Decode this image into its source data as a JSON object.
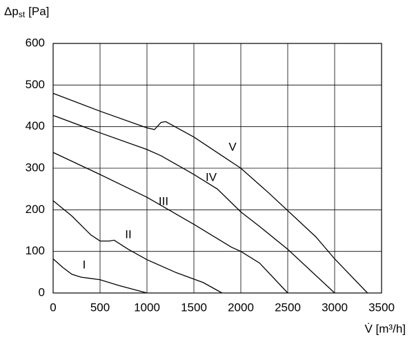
{
  "chart_data": {
    "type": "line",
    "y_label": {
      "main": "Δp",
      "sub": "st",
      "unit": "[Pa]"
    },
    "x_label": "V̇ [m³/h]",
    "xlim": [
      0,
      3500
    ],
    "xticks": [
      0,
      500,
      1000,
      1500,
      2000,
      2500,
      3000,
      3500
    ],
    "ylim": [
      0,
      600
    ],
    "yticks": [
      0,
      100,
      200,
      300,
      400,
      500,
      600
    ],
    "grid": true,
    "series": [
      {
        "name": "I",
        "color": "#000000",
        "x": [
          0,
          100,
          200,
          300,
          500,
          700,
          1000
        ],
        "values": [
          82,
          62,
          45,
          38,
          32,
          18,
          0
        ]
      },
      {
        "name": "II",
        "color": "#000000",
        "x": [
          0,
          200,
          400,
          500,
          600,
          650,
          800,
          1000,
          1300,
          1600,
          1800
        ],
        "values": [
          222,
          185,
          140,
          125,
          125,
          127,
          105,
          80,
          50,
          25,
          0
        ]
      },
      {
        "name": "III",
        "color": "#000000",
        "x": [
          0,
          500,
          1000,
          1500,
          1900,
          2000,
          2200,
          2500
        ],
        "values": [
          338,
          285,
          230,
          165,
          110,
          100,
          72,
          0
        ]
      },
      {
        "name": "IV",
        "color": "#000000",
        "x": [
          0,
          500,
          1000,
          1150,
          1500,
          1750,
          2000,
          2200,
          2500,
          3000
        ],
        "values": [
          427,
          385,
          345,
          330,
          285,
          250,
          195,
          160,
          105,
          0
        ]
      },
      {
        "name": "V",
        "color": "#000000",
        "x": [
          0,
          500,
          1000,
          1080,
          1150,
          1200,
          1500,
          1800,
          2000,
          2300,
          2800,
          3000,
          3350
        ],
        "values": [
          480,
          437,
          397,
          393,
          410,
          412,
          375,
          330,
          300,
          240,
          135,
          82,
          0
        ]
      }
    ]
  }
}
